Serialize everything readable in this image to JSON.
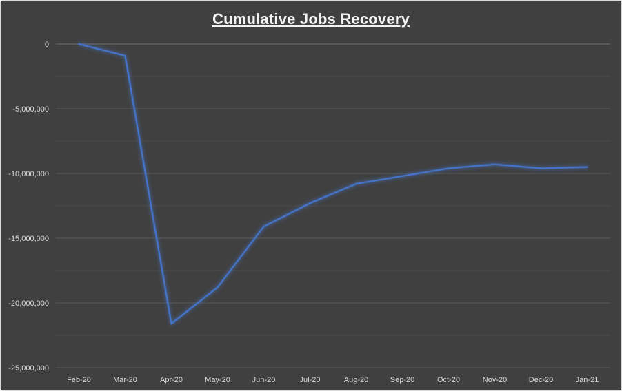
{
  "chart_data": {
    "type": "line",
    "title": "Cumulative Jobs Recovery",
    "xlabel": "",
    "ylabel": "",
    "categories": [
      "Feb-20",
      "Mar-20",
      "Apr-20",
      "May-20",
      "Jun-20",
      "Jul-20",
      "Aug-20",
      "Sep-20",
      "Oct-20",
      "Nov-20",
      "Dec-20",
      "Jan-21"
    ],
    "series": [
      {
        "values": [
          0,
          -900000,
          -21600000,
          -18800000,
          -14100000,
          -12300000,
          -10800000,
          -10200000,
          -9600000,
          -9300000,
          -9600000,
          -9500000
        ]
      }
    ],
    "ylim": [
      -25000000,
      0
    ],
    "yticks": [
      0,
      -5000000,
      -10000000,
      -15000000,
      -20000000,
      -25000000
    ],
    "ytick_labels": [
      "0",
      "-5,000,000",
      "-10,000,000",
      "-15,000,000",
      "-20,000,000",
      "-25,000,000"
    ],
    "grid": true,
    "line_color": "#4472c4",
    "background_color": "#404040"
  }
}
